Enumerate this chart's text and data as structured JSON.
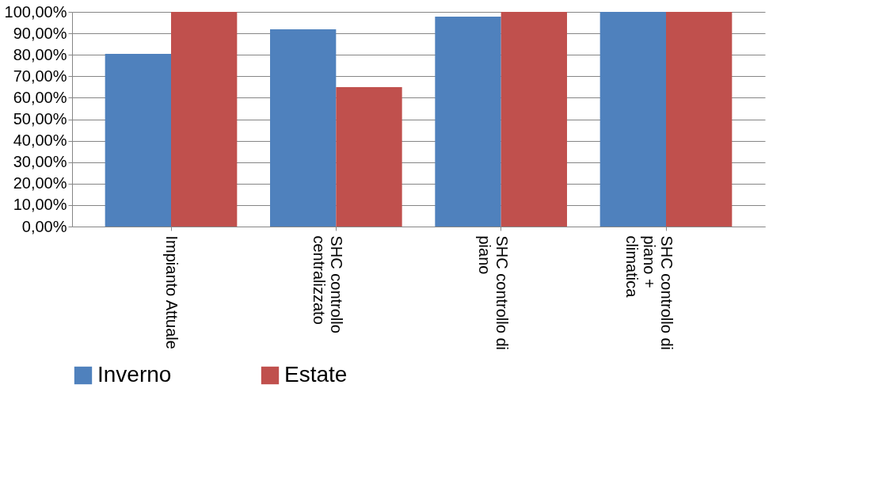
{
  "chart_data": {
    "type": "bar",
    "categories": [
      "Impianto Attuale",
      "SHC controllo centralizzato",
      "SHC controllo di piano",
      "SHC controllo di piano + climatica"
    ],
    "series": [
      {
        "name": "Inverno",
        "color": "#4f81bd",
        "values": [
          80.4,
          91.9,
          97.8,
          100
        ]
      },
      {
        "name": "Estate",
        "color": "#c0504d",
        "values": [
          100,
          64.9,
          100,
          100
        ]
      }
    ],
    "ylim": [
      0,
      100
    ],
    "yticks": [
      {
        "value": 0,
        "label": "0,00%"
      },
      {
        "value": 10,
        "label": "10,00%"
      },
      {
        "value": 20,
        "label": "20,00%"
      },
      {
        "value": 30,
        "label": "30,00%"
      },
      {
        "value": 40,
        "label": "40,00%"
      },
      {
        "value": 50,
        "label": "50,00%"
      },
      {
        "value": 60,
        "label": "60,00%"
      },
      {
        "value": 70,
        "label": "70,00%"
      },
      {
        "value": 80,
        "label": "80,00%"
      },
      {
        "value": 90,
        "label": "90,00%"
      },
      {
        "value": 100,
        "label": "100,00%"
      }
    ],
    "grid": "y",
    "legend": "bottom"
  }
}
